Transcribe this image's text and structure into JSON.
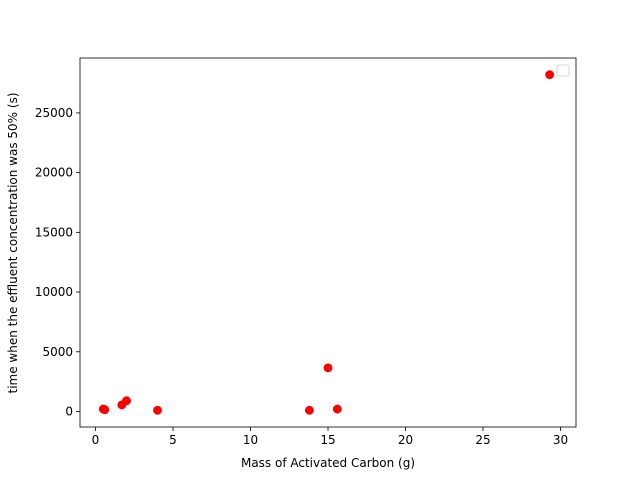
{
  "chart_data": {
    "type": "scatter",
    "title": "",
    "xlabel": "Mass of Activated Carbon (g)",
    "ylabel": "time when the effluent concentration was 50% (s)",
    "xlim": [
      -1,
      31
    ],
    "ylim": [
      -1300,
      29600
    ],
    "xticks": [
      0,
      5,
      10,
      15,
      20,
      25,
      30
    ],
    "xtick_labels": [
      "0",
      "5",
      "10",
      "15",
      "20",
      "25",
      "30"
    ],
    "yticks": [
      0,
      5000,
      10000,
      15000,
      20000,
      25000
    ],
    "ytick_labels": [
      "0",
      "5000",
      "10000",
      "15000",
      "20000",
      "25000"
    ],
    "grid": false,
    "legend": {
      "placement": "top-right",
      "entries": [
        ""
      ]
    },
    "series": [
      {
        "color": "#ff0000",
        "marker": "circle",
        "points": [
          {
            "x": 0.5,
            "y": 200
          },
          {
            "x": 0.6,
            "y": 150
          },
          {
            "x": 1.7,
            "y": 550
          },
          {
            "x": 2.0,
            "y": 900
          },
          {
            "x": 4.0,
            "y": 100
          },
          {
            "x": 13.8,
            "y": 100
          },
          {
            "x": 15.0,
            "y": 3650
          },
          {
            "x": 15.6,
            "y": 200
          },
          {
            "x": 29.3,
            "y": 28200
          }
        ]
      }
    ]
  }
}
